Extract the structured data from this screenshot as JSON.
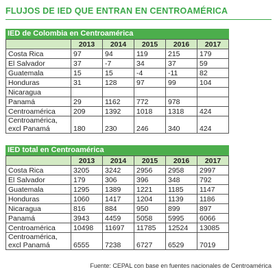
{
  "title": "FLUJOS DE IED QUE ENTRAN EN CENTROAMÉRICA",
  "tables": [
    {
      "heading": "IED de Colombia en Centroamérica",
      "years": [
        "2013",
        "2014",
        "2015",
        "2016",
        "2017"
      ],
      "rows": [
        {
          "label": "Costa Rica",
          "values": [
            97,
            94,
            119,
            215,
            179
          ]
        },
        {
          "label": "El Salvador",
          "values": [
            37,
            -7,
            34,
            37,
            59
          ]
        },
        {
          "label": "Guatemala",
          "values": [
            15,
            15,
            -4,
            -11,
            82
          ]
        },
        {
          "label": "Honduras",
          "values": [
            31,
            128,
            97,
            99,
            104
          ]
        },
        {
          "label": "Nicaragua",
          "values": [
            null,
            null,
            null,
            null,
            null
          ]
        },
        {
          "label": "Panamá",
          "values": [
            29,
            1162,
            772,
            978,
            null
          ]
        },
        {
          "label": "Centroamérica",
          "values": [
            209,
            1392,
            1018,
            1318,
            424
          ]
        },
        {
          "label": "Centroamérica, excl Panamá",
          "values": [
            180,
            230,
            246,
            340,
            424
          ]
        }
      ]
    },
    {
      "heading": "IED total en Centroamérica",
      "years": [
        "2013",
        "2014",
        "2015",
        "2016",
        "2017"
      ],
      "rows": [
        {
          "label": "Costa Rica",
          "values": [
            3205,
            3242,
            2956,
            2958,
            2997
          ]
        },
        {
          "label": "El Salvador",
          "values": [
            179,
            306,
            396,
            348,
            792
          ]
        },
        {
          "label": "Guatemala",
          "values": [
            1295,
            1389,
            1221,
            1185,
            1147
          ]
        },
        {
          "label": "Honduras",
          "values": [
            1060,
            1417,
            1204,
            1139,
            1186
          ]
        },
        {
          "label": "Nicaragua",
          "values": [
            816,
            884,
            950,
            899,
            897
          ]
        },
        {
          "label": "Panamá",
          "values": [
            3943,
            4459,
            5058,
            5995,
            6066
          ]
        },
        {
          "label": "Centroamérica",
          "values": [
            10498,
            11697,
            11785,
            12524,
            13085
          ]
        },
        {
          "label": "Centroamérica, excl Panamá",
          "values": [
            6555,
            7238,
            6727,
            6529,
            7019
          ]
        }
      ]
    }
  ],
  "source": "Fuente: CEPAL con base en fuentes nacionales de Centroamérica"
}
